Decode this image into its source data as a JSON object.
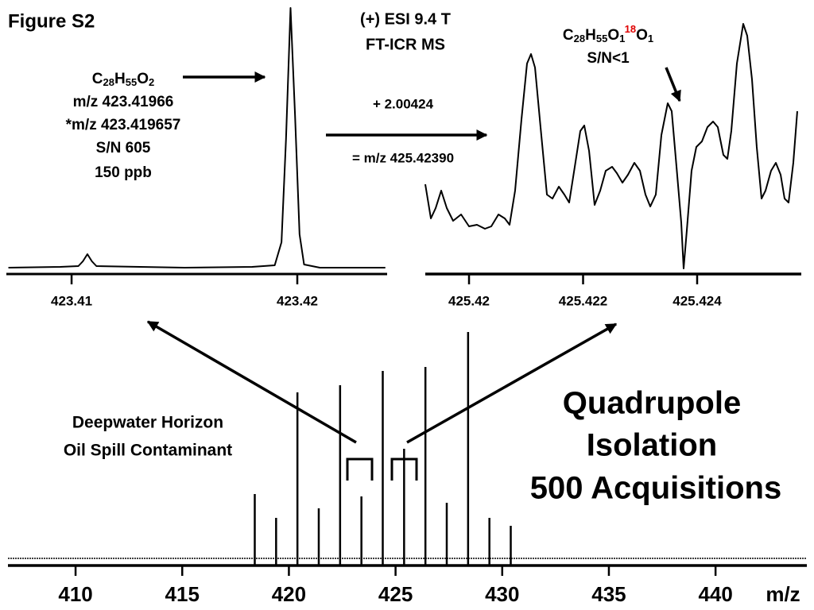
{
  "chart_data": [
    {
      "type": "line",
      "color": "#000000",
      "x": [
        423.4072,
        423.4095,
        423.4103,
        423.4105,
        423.4107,
        423.4109,
        423.4111,
        423.415,
        423.418,
        423.419,
        423.4193,
        423.4195,
        423.4197,
        423.4199,
        423.4201,
        423.4203,
        423.421,
        423.4239
      ],
      "values": [
        8,
        9,
        10,
        16,
        25,
        16,
        10,
        8,
        9,
        11,
        40,
        170,
        335,
        200,
        50,
        12,
        8,
        8
      ],
      "xlim": [
        423.40711,
        423.42398
      ],
      "xticks": [
        423.41,
        423.42
      ],
      "ylim": [
        0,
        335
      ]
    },
    {
      "type": "line",
      "color": "#000000",
      "x": [
        425.419233,
        425.419331,
        425.419415,
        425.419512,
        425.41961,
        425.419721,
        425.419861,
        425.42,
        425.420139,
        425.420279,
        425.42039,
        425.420516,
        425.420627,
        425.420711,
        425.420808,
        425.42092,
        425.421017,
        425.421087,
        425.421157,
        425.421254,
        425.421366,
        425.421463,
        425.421575,
        425.421672,
        425.421756,
        425.421854,
        425.421951,
        425.422021,
        425.422105,
        425.422202,
        425.4223,
        425.422397,
        425.422509,
        425.422592,
        425.42269,
        425.422787,
        425.422899,
        425.422997,
        425.423094,
        425.423178,
        425.423275,
        425.423373,
        425.423484,
        425.423554,
        425.423638,
        425.423721,
        425.423763,
        425.423819,
        425.423902,
        425.423986,
        425.424084,
        425.424181,
        425.424279,
        425.424362,
        425.42446,
        425.42453,
        425.424599,
        425.424697,
        425.424808,
        425.424878,
        425.424962,
        425.425045,
        425.425129,
        425.425199,
        425.425296,
        425.42538,
        425.425464,
        425.425533,
        425.425603,
        425.425686,
        425.425756
      ],
      "values": [
        113,
        70,
        83,
        105,
        83,
        67,
        75,
        60,
        62,
        57,
        60,
        75,
        70,
        62,
        105,
        195,
        265,
        277,
        260,
        185,
        100,
        95,
        110,
        100,
        90,
        135,
        180,
        187,
        155,
        87,
        105,
        130,
        135,
        127,
        115,
        125,
        140,
        130,
        100,
        85,
        100,
        175,
        215,
        205,
        135,
        65,
        7,
        55,
        130,
        160,
        167,
        185,
        192,
        185,
        150,
        145,
        180,
        265,
        315,
        300,
        245,
        160,
        95,
        105,
        130,
        140,
        125,
        95,
        90,
        140,
        205
      ],
      "xlim": [
        425.419233,
        425.425826
      ],
      "xticks": [
        425.42,
        425.422,
        425.424
      ],
      "ylim": [
        0,
        320
      ]
    },
    {
      "type": "stick",
      "color": "#000000",
      "x": [
        418.4,
        419.4,
        420.4,
        421.4,
        422.4,
        423.4,
        424.4,
        425.4,
        426.4,
        427.4,
        428.4,
        429.4,
        430.4
      ],
      "values": [
        90,
        60,
        218,
        72,
        227,
        87,
        245,
        147,
        250,
        79,
        294,
        60,
        50
      ],
      "xlim": [
        406.83,
        444.28
      ],
      "xticks": [
        410,
        415,
        420,
        425,
        430,
        435,
        440
      ],
      "ylim": [
        0,
        304
      ],
      "x_label": "m/z"
    }
  ],
  "labels": {
    "figure": "Figure S2",
    "instrument": [
      "(+) ESI 9.4 T",
      "FT-ICR MS"
    ],
    "formula_left": [
      {
        "text": "C"
      },
      {
        "sub": "28"
      },
      {
        "text": "H"
      },
      {
        "sub": "55"
      },
      {
        "text": "O"
      },
      {
        "sub": "2"
      }
    ],
    "left_lines": [
      "m/z 423.41966",
      "*m/z 423.419657",
      "S/N 605",
      "150 ppb"
    ],
    "shift": [
      "+ 2.00424",
      "= m/z 425.42390"
    ],
    "formula_right": [
      {
        "text": "C"
      },
      {
        "sub": "28"
      },
      {
        "text": "H"
      },
      {
        "sub": "55"
      },
      {
        "text": "O"
      },
      {
        "sub": "1"
      },
      {
        "sup": "18"
      },
      {
        "text": "O"
      },
      {
        "sub": "1"
      }
    ],
    "right_lines": [
      "S/N<1"
    ],
    "sample": [
      "Deepwater Horizon",
      "Oil Spill Contaminant"
    ],
    "method": [
      "Quadrupole",
      "Isolation",
      "500 Acquisitions"
    ]
  }
}
